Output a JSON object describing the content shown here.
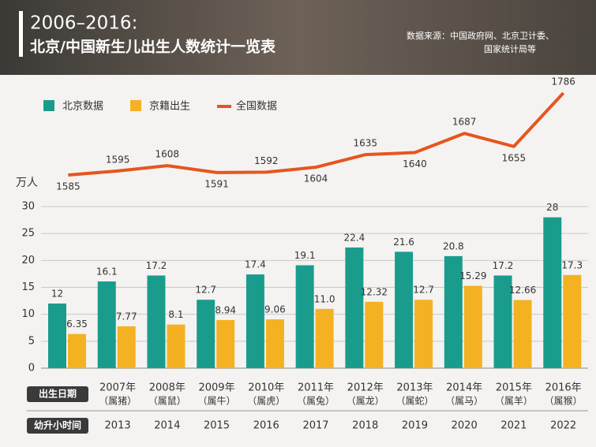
{
  "header": {
    "title": "2006–2016:",
    "subtitle": "北京/中国新生儿出生人数统计一览表",
    "source": [
      "数据来源：中国政府网、北京卫计委、",
      "国家统计局等"
    ]
  },
  "chart_data": {
    "type": "bar",
    "unit": "万人",
    "categories": [
      null,
      "2007年",
      "2008年",
      "2009年",
      "2010年",
      "2011年",
      "2012年",
      "2013年",
      "2014年",
      "2015年",
      "2016年"
    ],
    "category_notes": [
      null,
      "（属猪）",
      "（属鼠）",
      "（属牛）",
      "（属虎）",
      "（属兔）",
      "（属龙）",
      "（属蛇）",
      "（属马）",
      "（属羊）",
      "（属猴）"
    ],
    "row_labels": [
      "出生日期",
      "幼升小时间"
    ],
    "school_years": [
      null,
      "2013",
      "2014",
      "2015",
      "2016",
      "2017",
      "2018",
      "2019",
      "2020",
      "2021",
      "2022"
    ],
    "series": [
      {
        "name": "北京数据",
        "color": "#1a9c8d",
        "values": [
          12,
          16.1,
          17.2,
          12.7,
          17.4,
          19.1,
          22.4,
          21.6,
          20.8,
          17.2,
          28
        ]
      },
      {
        "name": "京籍出生",
        "color": "#f4b223",
        "values": [
          6.35,
          7.77,
          8.1,
          8.94,
          9.06,
          11.0,
          12.32,
          12.7,
          15.29,
          12.66,
          17.3
        ],
        "value_labels": [
          "6.35",
          "7.77",
          "8.1",
          "8.94",
          "9.06",
          "11.0",
          "12.32",
          "12.7",
          "15.29",
          "12.66",
          "17.3"
        ]
      },
      {
        "name": "全国数据",
        "color": "#e5561e",
        "type": "line",
        "values": [
          1585,
          1595,
          1608,
          1591,
          1592,
          1604,
          1635,
          1640,
          1687,
          1655,
          1786
        ]
      }
    ],
    "ylim": [
      0,
      30
    ],
    "yticks": [
      0,
      5,
      10,
      15,
      20,
      25,
      30
    ]
  }
}
